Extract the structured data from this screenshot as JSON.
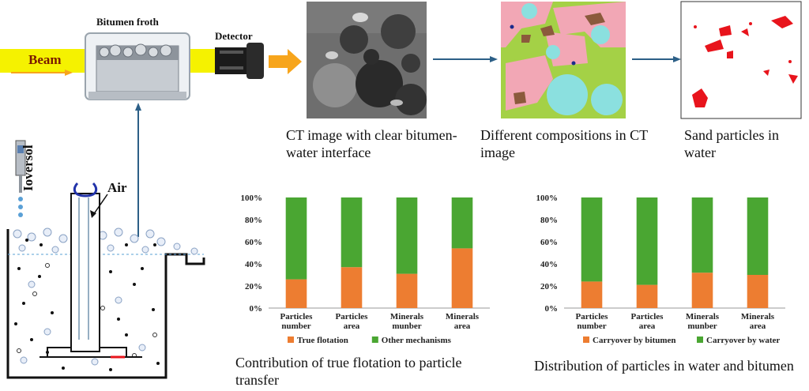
{
  "setup": {
    "froth_label": "Bitumen froth",
    "detector_label": "Detector",
    "beam_label": "Beam",
    "air_label": "Air",
    "tracer_label": "Ioversol"
  },
  "panels": {
    "ct_caption": "CT image with clear bitumen-water interface",
    "comp_caption": "Different compositions in CT image",
    "sand_caption": "Sand particles in water"
  },
  "colors": {
    "beam": "#f5f200",
    "arrow_orange": "#f7a51c",
    "blue_arrow": "#2c5f87",
    "series_orange": "#ed7d31",
    "series_green": "#4aa632",
    "comp_pink": "#f2a7b5",
    "comp_green": "#a4d146",
    "comp_cyan": "#8be0df",
    "comp_brown": "#8b5a3c",
    "sand_red": "#e8141c"
  },
  "chart_data": [
    {
      "type": "bar",
      "stacked": true,
      "percent": true,
      "title": "",
      "caption": "Contribution of true flotation to particle transfer",
      "categories": [
        "Particles number",
        "Particles area",
        "Minerals munber",
        "Minerals area"
      ],
      "category_lines": [
        [
          "Particles",
          "number"
        ],
        [
          "Particles",
          "area"
        ],
        [
          "Minerals",
          "munber"
        ],
        [
          "Minerals",
          "area"
        ]
      ],
      "series": [
        {
          "name": "True flotation",
          "values": [
            26,
            37,
            31,
            54
          ],
          "color": "#ed7d31"
        },
        {
          "name": "Other mechanisms",
          "values": [
            74,
            63,
            69,
            46
          ],
          "color": "#4aa632"
        }
      ],
      "ylim": [
        0,
        100
      ],
      "yticks": [
        "0%",
        "20%",
        "40%",
        "60%",
        "80%",
        "100%"
      ],
      "legend": "bottom",
      "grid": false
    },
    {
      "type": "bar",
      "stacked": true,
      "percent": true,
      "title": "",
      "caption": "Distribution of particles in water and bitumen",
      "categories": [
        "Particles number",
        "Particles area",
        "Minerals munber",
        "Minerals area"
      ],
      "category_lines": [
        [
          "Particles",
          "number"
        ],
        [
          "Particles",
          "area"
        ],
        [
          "Minerals",
          "munber"
        ],
        [
          "Minerals",
          "area"
        ]
      ],
      "series": [
        {
          "name": "Carryover by bitumen",
          "values": [
            24,
            21,
            32,
            30
          ],
          "color": "#ed7d31"
        },
        {
          "name": "Carryover by water",
          "values": [
            76,
            79,
            68,
            70
          ],
          "color": "#4aa632"
        }
      ],
      "ylim": [
        0,
        100
      ],
      "yticks": [
        "0%",
        "20%",
        "40%",
        "60%",
        "80%",
        "100%"
      ],
      "legend": "bottom",
      "grid": false
    }
  ]
}
